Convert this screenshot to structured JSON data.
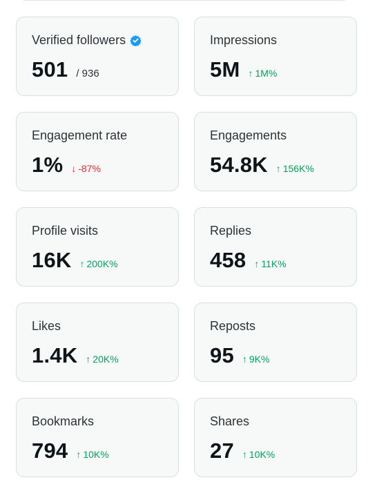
{
  "cards": [
    {
      "title": "Verified followers",
      "value": "501",
      "sub": "/ 936",
      "verified_icon": "verified-badge-icon",
      "badge_color": "#1d9bf0"
    },
    {
      "title": "Impressions",
      "value": "5M",
      "change": "1M%",
      "direction": "up"
    },
    {
      "title": "Engagement rate",
      "value": "1%",
      "change": "-87%",
      "direction": "down"
    },
    {
      "title": "Engagements",
      "value": "54.8K",
      "change": "156K%",
      "direction": "up"
    },
    {
      "title": "Profile visits",
      "value": "16K",
      "change": "200K%",
      "direction": "up"
    },
    {
      "title": "Replies",
      "value": "458",
      "change": "11K%",
      "direction": "up"
    },
    {
      "title": "Likes",
      "value": "1.4K",
      "change": "20K%",
      "direction": "up"
    },
    {
      "title": "Reposts",
      "value": "95",
      "change": "9K%",
      "direction": "up"
    },
    {
      "title": "Bookmarks",
      "value": "794",
      "change": "10K%",
      "direction": "up"
    },
    {
      "title": "Shares",
      "value": "27",
      "change": "10K%",
      "direction": "up"
    }
  ],
  "colors": {
    "up": "#00a35c",
    "down": "#f4212e",
    "card_bg": "#f7f9f9",
    "card_border": "#d9dee2"
  },
  "icons": {
    "up": "arrow-up-icon",
    "down": "arrow-down-icon"
  }
}
